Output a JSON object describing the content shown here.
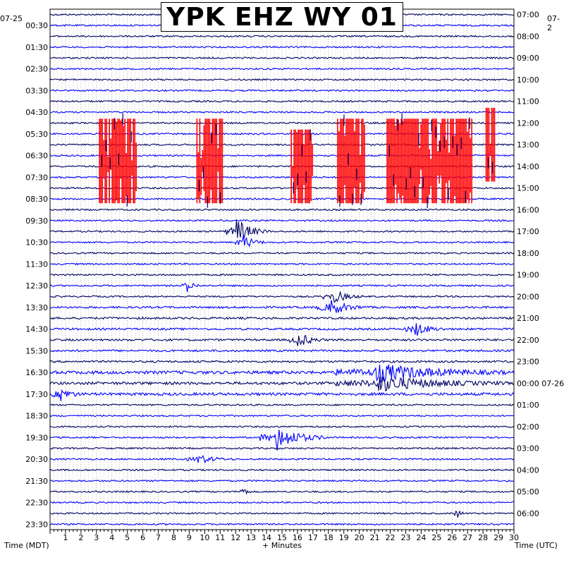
{
  "title": "YPK EHZ WY 01",
  "top_left_date": "07-25",
  "top_right_date": "07-2",
  "left_axis_label": "Time (MDT)",
  "bottom_axis_label": "+ Minutes",
  "right_axis_label": "Time (UTC)",
  "colors": {
    "trace_dark": "#000066",
    "trace_blue": "#0000ff",
    "clipped": "#ff0000",
    "grid": "#9a9a9a",
    "frame": "#000000"
  },
  "chart_data": {
    "type": "helicorder",
    "title": "YPK EHZ WY 01",
    "x": {
      "label": "+ Minutes",
      "range": [
        0,
        30
      ],
      "ticks": [
        1,
        2,
        3,
        4,
        5,
        6,
        7,
        8,
        9,
        10,
        11,
        12,
        13,
        14,
        15,
        16,
        17,
        18,
        19,
        20,
        21,
        22,
        23,
        24,
        25,
        26,
        27,
        28,
        29,
        30
      ],
      "tick_labels": [
        "1",
        "2",
        "3",
        "4",
        "5",
        "6",
        "7",
        "8",
        "9",
        "10",
        "11",
        "12",
        "13",
        "14",
        "15",
        "16",
        "17",
        "18",
        "19",
        "20",
        "21",
        "22",
        "23",
        "24",
        "25",
        "26",
        "27",
        "28",
        "29",
        "30"
      ]
    },
    "row_count": 48,
    "row_minutes": 30,
    "left_time_labels": [
      "00:30",
      "01:30",
      "02:30",
      "03:30",
      "04:30",
      "05:30",
      "06:30",
      "07:30",
      "08:30",
      "09:30",
      "10:30",
      "11:30",
      "12:30",
      "13:30",
      "14:30",
      "15:30",
      "16:30",
      "17:30",
      "18:30",
      "19:30",
      "20:30",
      "21:30",
      "22:30",
      "23:30"
    ],
    "left_label_rows": [
      1,
      3,
      5,
      7,
      9,
      11,
      13,
      15,
      17,
      19,
      21,
      23,
      25,
      27,
      29,
      31,
      33,
      35,
      37,
      39,
      41,
      43,
      45,
      47
    ],
    "right_time_labels": [
      "07:00",
      "08:00",
      "09:00",
      "10:00",
      "11:00",
      "12:00",
      "13:00",
      "14:00",
      "15:00",
      "16:00",
      "17:00",
      "18:00",
      "19:00",
      "20:00",
      "21:00",
      "22:00",
      "23:00",
      "00:00  07-26",
      "01:00",
      "02:00",
      "03:00",
      "04:00",
      "05:00",
      "06:00"
    ],
    "right_label_rows": [
      0,
      2,
      4,
      6,
      8,
      10,
      12,
      14,
      16,
      18,
      20,
      22,
      24,
      26,
      28,
      30,
      32,
      34,
      36,
      38,
      40,
      42,
      44,
      46
    ],
    "trace_color_cycle": [
      "dark",
      "blue",
      "dark",
      "blue"
    ],
    "clipped_blocks": [
      {
        "row_start": 10,
        "row_end": 17,
        "minute_start": 3.2,
        "minute_end": 5.6
      },
      {
        "row_start": 10,
        "row_end": 17,
        "minute_start": 9.5,
        "minute_end": 11.2
      },
      {
        "row_start": 11,
        "row_end": 17,
        "minute_start": 15.6,
        "minute_end": 17.0
      },
      {
        "row_start": 10,
        "row_end": 17,
        "minute_start": 18.6,
        "minute_end": 20.4
      },
      {
        "row_start": 10,
        "row_end": 17,
        "minute_start": 21.8,
        "minute_end": 27.3
      },
      {
        "row_start": 9,
        "row_end": 15,
        "minute_start": 28.2,
        "minute_end": 28.8
      }
    ],
    "events": [
      {
        "row": 20,
        "minute": 12.0,
        "width": 2.2,
        "amp": 3.0
      },
      {
        "row": 21,
        "minute": 12.4,
        "width": 1.5,
        "amp": 2.0
      },
      {
        "row": 25,
        "minute": 8.8,
        "width": 1.0,
        "amp": 1.6
      },
      {
        "row": 26,
        "minute": 18.2,
        "width": 2.0,
        "amp": 1.8
      },
      {
        "row": 27,
        "minute": 18.0,
        "width": 2.5,
        "amp": 2.0
      },
      {
        "row": 29,
        "minute": 23.5,
        "width": 2.0,
        "amp": 1.8
      },
      {
        "row": 30,
        "minute": 16.0,
        "width": 1.8,
        "amp": 1.8
      },
      {
        "row": 33,
        "minute": 21.0,
        "width": 8.5,
        "amp": 2.0
      },
      {
        "row": 34,
        "minute": 21.0,
        "width": 8.5,
        "amp": 1.8
      },
      {
        "row": 35,
        "minute": 0.6,
        "width": 1.5,
        "amp": 1.6
      },
      {
        "row": 39,
        "minute": 14.6,
        "width": 3.5,
        "amp": 2.8
      },
      {
        "row": 41,
        "minute": 9.5,
        "width": 2.5,
        "amp": 1.0
      },
      {
        "row": 44,
        "minute": 12.4,
        "width": 0.6,
        "amp": 1.4
      },
      {
        "row": 46,
        "minute": 26.3,
        "width": 0.5,
        "amp": 1.5
      }
    ]
  }
}
